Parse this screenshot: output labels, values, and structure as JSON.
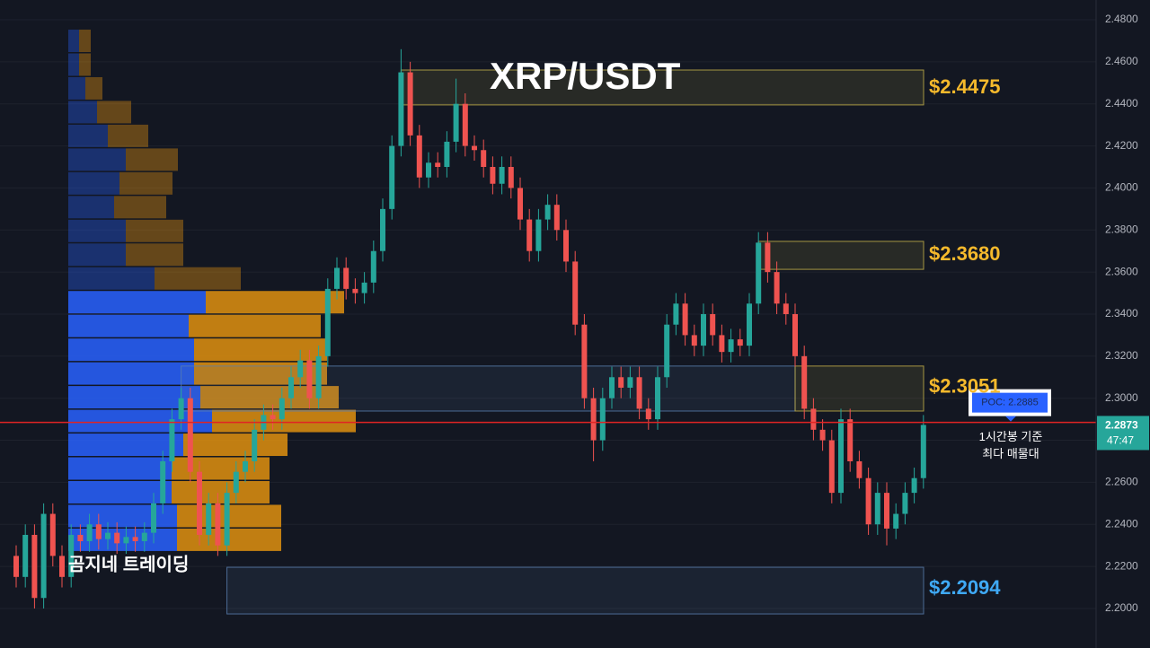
{
  "chart_data": {
    "type": "candlestick",
    "title": "XRP/USDT",
    "watermark": "곰지네 트레이딩",
    "ylim": [
      2.1812,
      2.4894
    ],
    "yticks": [
      {
        "value": 2.48,
        "label": "2.4800"
      },
      {
        "value": 2.46,
        "label": "2.4600"
      },
      {
        "value": 2.44,
        "label": "2.4400"
      },
      {
        "value": 2.42,
        "label": "2.4200"
      },
      {
        "value": 2.4,
        "label": "2.4000"
      },
      {
        "value": 2.38,
        "label": "2.3800"
      },
      {
        "value": 2.36,
        "label": "2.3600"
      },
      {
        "value": 2.34,
        "label": "2.3400"
      },
      {
        "value": 2.32,
        "label": "2.3200"
      },
      {
        "value": 2.3,
        "label": "2.3000"
      },
      {
        "value": 2.28,
        "label": "2.2800"
      },
      {
        "value": 2.26,
        "label": "2.2600"
      },
      {
        "value": 2.24,
        "label": "2.2400"
      },
      {
        "value": 2.22,
        "label": "2.2200"
      },
      {
        "value": 2.2,
        "label": "2.2000"
      }
    ],
    "grid": true,
    "up_color": "#26a69a",
    "down_color": "#ef5350",
    "open": [
      2.225,
      2.215,
      2.235,
      2.205,
      2.245,
      2.225,
      2.215,
      2.235,
      2.232,
      2.24,
      2.233,
      2.236,
      2.231,
      2.234,
      2.232,
      2.236,
      2.25,
      2.27,
      2.29,
      2.3,
      2.265,
      2.235,
      2.25,
      2.23,
      2.255,
      2.265,
      2.27,
      2.285,
      2.292,
      2.29,
      2.3,
      2.31,
      2.318,
      2.3,
      2.32,
      2.352,
      2.362,
      2.352,
      2.35,
      2.355,
      2.37,
      2.39,
      2.42,
      2.455,
      2.425,
      2.405,
      2.412,
      2.41,
      2.422,
      2.44,
      2.42,
      2.418,
      2.41,
      2.402,
      2.41,
      2.4,
      2.385,
      2.37,
      2.385,
      2.392,
      2.38,
      2.365,
      2.335,
      2.3,
      2.28,
      2.3,
      2.31,
      2.305,
      2.31,
      2.295,
      2.29,
      2.31,
      2.335,
      2.345,
      2.33,
      2.325,
      2.34,
      2.33,
      2.322,
      2.328,
      2.325,
      2.345,
      2.374,
      2.36,
      2.345,
      2.34,
      2.32,
      2.295,
      2.285,
      2.28,
      2.255,
      2.29,
      2.27,
      2.262,
      2.24,
      2.255,
      2.238,
      2.245,
      2.255,
      2.262
    ],
    "high": [
      2.23,
      2.24,
      2.24,
      2.25,
      2.25,
      2.23,
      2.24,
      2.24,
      2.245,
      2.245,
      2.241,
      2.241,
      2.239,
      2.239,
      2.241,
      2.255,
      2.275,
      2.295,
      2.305,
      2.305,
      2.27,
      2.255,
      2.255,
      2.26,
      2.27,
      2.275,
      2.29,
      2.297,
      2.297,
      2.305,
      2.315,
      2.323,
      2.323,
      2.325,
      2.357,
      2.367,
      2.367,
      2.357,
      2.36,
      2.375,
      2.395,
      2.425,
      2.466,
      2.46,
      2.43,
      2.417,
      2.417,
      2.427,
      2.452,
      2.445,
      2.425,
      2.423,
      2.415,
      2.415,
      2.415,
      2.405,
      2.39,
      2.39,
      2.397,
      2.397,
      2.385,
      2.37,
      2.34,
      2.305,
      2.305,
      2.315,
      2.315,
      2.315,
      2.315,
      2.3,
      2.315,
      2.34,
      2.35,
      2.35,
      2.335,
      2.345,
      2.345,
      2.335,
      2.333,
      2.333,
      2.35,
      2.379,
      2.379,
      2.365,
      2.35,
      2.345,
      2.325,
      2.3,
      2.29,
      2.285,
      2.295,
      2.295,
      2.275,
      2.267,
      2.26,
      2.26,
      2.25,
      2.26,
      2.267,
      2.292
    ],
    "low": [
      2.21,
      2.21,
      2.2,
      2.2,
      2.22,
      2.21,
      2.21,
      2.227,
      2.227,
      2.228,
      2.228,
      2.226,
      2.226,
      2.227,
      2.227,
      2.231,
      2.245,
      2.265,
      2.285,
      2.26,
      2.23,
      2.23,
      2.225,
      2.225,
      2.25,
      2.26,
      2.265,
      2.28,
      2.285,
      2.285,
      2.295,
      2.305,
      2.295,
      2.295,
      2.315,
      2.347,
      2.347,
      2.345,
      2.345,
      2.35,
      2.365,
      2.385,
      2.415,
      2.42,
      2.4,
      2.4,
      2.405,
      2.405,
      2.417,
      2.415,
      2.413,
      2.405,
      2.397,
      2.397,
      2.395,
      2.38,
      2.365,
      2.365,
      2.38,
      2.375,
      2.36,
      2.33,
      2.295,
      2.27,
      2.275,
      2.295,
      2.3,
      2.3,
      2.29,
      2.285,
      2.285,
      2.305,
      2.33,
      2.325,
      2.32,
      2.32,
      2.325,
      2.317,
      2.317,
      2.32,
      2.32,
      2.34,
      2.355,
      2.34,
      2.335,
      2.315,
      2.29,
      2.28,
      2.275,
      2.25,
      2.25,
      2.265,
      2.257,
      2.235,
      2.235,
      2.23,
      2.233,
      2.24,
      2.25,
      2.257
    ],
    "close": [
      2.215,
      2.235,
      2.205,
      2.245,
      2.225,
      2.215,
      2.235,
      2.232,
      2.24,
      2.233,
      2.236,
      2.231,
      2.234,
      2.232,
      2.236,
      2.25,
      2.27,
      2.29,
      2.3,
      2.265,
      2.235,
      2.25,
      2.23,
      2.255,
      2.265,
      2.27,
      2.285,
      2.292,
      2.29,
      2.3,
      2.31,
      2.318,
      2.3,
      2.32,
      2.352,
      2.362,
      2.352,
      2.35,
      2.355,
      2.37,
      2.39,
      2.42,
      2.455,
      2.425,
      2.405,
      2.412,
      2.41,
      2.422,
      2.44,
      2.42,
      2.418,
      2.41,
      2.402,
      2.41,
      2.4,
      2.385,
      2.37,
      2.385,
      2.392,
      2.38,
      2.365,
      2.335,
      2.3,
      2.28,
      2.3,
      2.31,
      2.305,
      2.31,
      2.295,
      2.29,
      2.31,
      2.335,
      2.345,
      2.33,
      2.325,
      2.34,
      2.33,
      2.322,
      2.328,
      2.325,
      2.345,
      2.374,
      2.36,
      2.345,
      2.34,
      2.32,
      2.295,
      2.285,
      2.28,
      2.255,
      2.29,
      2.27,
      2.262,
      2.24,
      2.255,
      2.238,
      2.245,
      2.255,
      2.262,
      2.2873
    ],
    "volume_profile": {
      "levels": [
        2.4753,
        2.464,
        2.4527,
        2.4414,
        2.4301,
        2.4188,
        2.4075,
        2.3962,
        2.3849,
        2.3736,
        2.3623,
        2.351,
        2.3397,
        2.3284,
        2.3171,
        2.3058,
        2.2945,
        2.2832,
        2.2719,
        2.2606,
        2.2493,
        2.238
      ],
      "up": [
        12,
        12,
        19,
        32,
        44,
        64,
        57,
        51,
        64,
        64,
        96,
        153,
        134,
        140,
        140,
        147,
        160,
        128,
        115,
        115,
        121,
        121
      ],
      "down": [
        13,
        13,
        19,
        38,
        45,
        58,
        59,
        58,
        64,
        64,
        96,
        154,
        147,
        148,
        148,
        154,
        160,
        116,
        109,
        109,
        116,
        116
      ],
      "value_area_high": 2.351,
      "up_color": "#2962ff",
      "down_color": "#e0900f"
    },
    "zones": [
      {
        "top": 2.4561,
        "bottom": 2.4395,
        "from": 42,
        "color": "#c8b44a",
        "label": {
          "value": 2.4475,
          "label": "$2.4475"
        },
        "label_color": "#f5b92c"
      },
      {
        "top": 2.3746,
        "bottom": 2.3613,
        "from": 81,
        "color": "#c8b44a",
        "label": {
          "value": 2.368,
          "label": "$2.3680"
        },
        "label_color": "#f5b92c"
      },
      {
        "top": 2.3153,
        "bottom": 2.2939,
        "from": 18,
        "to": 85,
        "color": "#5a7fb0"
      },
      {
        "top": 2.3153,
        "bottom": 2.2939,
        "from": 85,
        "color": "#c8b44a",
        "label": {
          "value": 2.3051,
          "label": "$2.3051"
        },
        "label_color": "#f5b92c"
      },
      {
        "top": 2.2196,
        "bottom": 2.1974,
        "from": 23,
        "color": "#5a7fb0",
        "label": {
          "value": 2.2094,
          "label": "$2.2094"
        },
        "label_color": "#3fa9f5"
      }
    ],
    "poc": {
      "value": 2.2885,
      "label": "POC: 2.2885"
    },
    "poc_note": [
      "1시간봉 기준",
      "최다 매물대"
    ],
    "last_price": 2.2873,
    "countdown": "47:47"
  }
}
